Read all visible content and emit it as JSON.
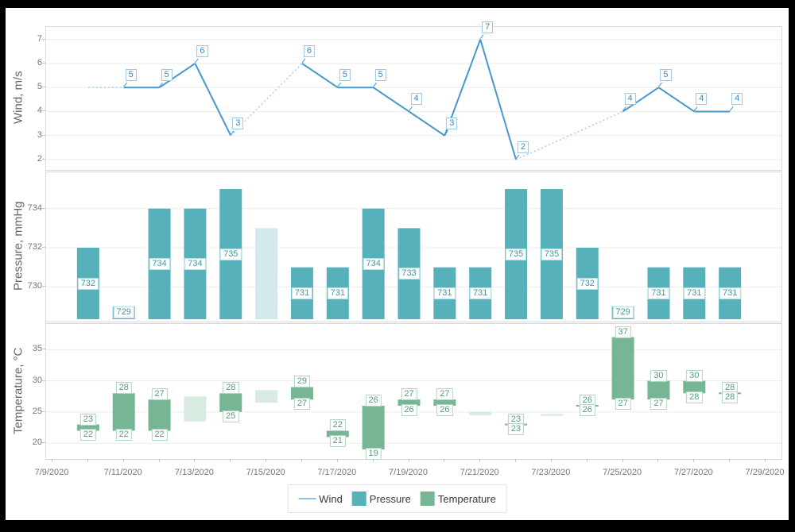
{
  "colors": {
    "wind": "#4698cb",
    "wind_interpolated": "#a8cee6",
    "pressure": "#57b1bb",
    "pressure_interpolated": "#d3e9ec",
    "temperature": "#76b694",
    "temperature_interpolated": "#d7ebe0",
    "grid": "#ececec",
    "pane_border": "#d9d9d9",
    "axis_text": "#767676"
  },
  "x_axis": {
    "labels": [
      "7/9/2020",
      "7/11/2020",
      "7/13/2020",
      "7/15/2020",
      "7/17/2020",
      "7/19/2020",
      "7/21/2020",
      "7/23/2020",
      "7/25/2020",
      "7/27/2020",
      "7/29/2020"
    ]
  },
  "legend": {
    "items": [
      {
        "label": "Wind",
        "marker": "line",
        "color": "#8fc2e0"
      },
      {
        "label": "Pressure",
        "marker": "box",
        "color": "#57b1bb"
      },
      {
        "label": "Temperature",
        "marker": "box",
        "color": "#76b694"
      }
    ]
  },
  "chart_data": [
    {
      "type": "line",
      "name": "Wind",
      "title": "Wind, m/s",
      "y_ticks": [
        7,
        6,
        5,
        4,
        3,
        2
      ],
      "ylim": [
        1.5,
        7.5
      ],
      "points": [
        {
          "date": "7/10/2020",
          "value": 5,
          "interpolated": true
        },
        {
          "date": "7/11/2020",
          "value": 5
        },
        {
          "date": "7/12/2020",
          "value": 5
        },
        {
          "date": "7/13/2020",
          "value": 6
        },
        {
          "date": "7/14/2020",
          "value": 3
        },
        {
          "date": "7/16/2020",
          "value": 6
        },
        {
          "date": "7/17/2020",
          "value": 5
        },
        {
          "date": "7/18/2020",
          "value": 5
        },
        {
          "date": "7/19/2020",
          "value": 4
        },
        {
          "date": "7/20/2020",
          "value": 3
        },
        {
          "date": "7/21/2020",
          "value": 7
        },
        {
          "date": "7/22/2020",
          "value": 2
        },
        {
          "date": "7/25/2020",
          "value": 4
        },
        {
          "date": "7/26/2020",
          "value": 5
        },
        {
          "date": "7/27/2020",
          "value": 4
        },
        {
          "date": "7/28/2020",
          "value": 4
        }
      ]
    },
    {
      "type": "bar",
      "name": "Pressure",
      "title": "Pressure, mmHg",
      "y_ticks": [
        734,
        732,
        730
      ],
      "ylim": [
        728.4,
        735.9
      ],
      "bars": [
        {
          "date": "7/10/2020",
          "value": 732
        },
        {
          "date": "7/11/2020",
          "value": 729
        },
        {
          "date": "7/12/2020",
          "value": 734
        },
        {
          "date": "7/13/2020",
          "value": 734
        },
        {
          "date": "7/14/2020",
          "value": 735
        },
        {
          "date": "7/15/2020",
          "value": 733,
          "interpolated": true
        },
        {
          "date": "7/16/2020",
          "value": 731
        },
        {
          "date": "7/17/2020",
          "value": 731
        },
        {
          "date": "7/18/2020",
          "value": 734
        },
        {
          "date": "7/19/2020",
          "value": 733
        },
        {
          "date": "7/20/2020",
          "value": 731
        },
        {
          "date": "7/21/2020",
          "value": 731
        },
        {
          "date": "7/22/2020",
          "value": 735
        },
        {
          "date": "7/23/2020",
          "value": 735
        },
        {
          "date": "7/24/2020",
          "value": 732
        },
        {
          "date": "7/25/2020",
          "value": 729
        },
        {
          "date": "7/26/2020",
          "value": 731
        },
        {
          "date": "7/27/2020",
          "value": 731
        },
        {
          "date": "7/28/2020",
          "value": 731
        }
      ]
    },
    {
      "type": "rangebar",
      "name": "Temperature",
      "title": "Temperature, °C",
      "y_ticks": [
        35,
        30,
        25,
        20
      ],
      "ylim": [
        17.9,
        39.1
      ],
      "bars": [
        {
          "date": "7/10/2020",
          "low": 22,
          "high": 23
        },
        {
          "date": "7/11/2020",
          "low": 22,
          "high": 28
        },
        {
          "date": "7/12/2020",
          "low": 22,
          "high": 27
        },
        {
          "date": "7/13/2020",
          "low": 23.5,
          "high": 27.5,
          "interpolated": true
        },
        {
          "date": "7/14/2020",
          "low": 25,
          "high": 28
        },
        {
          "date": "7/15/2020",
          "low": 26.5,
          "high": 28.5,
          "interpolated": true
        },
        {
          "date": "7/16/2020",
          "low": 27,
          "high": 29
        },
        {
          "date": "7/17/2020",
          "low": 21,
          "high": 22
        },
        {
          "date": "7/18/2020",
          "low": 19,
          "high": 26
        },
        {
          "date": "7/19/2020",
          "low": 26,
          "high": 27
        },
        {
          "date": "7/20/2020",
          "low": 26,
          "high": 27
        },
        {
          "date": "7/21/2020",
          "low": 24.5,
          "high": 25,
          "interpolated": true
        },
        {
          "date": "7/22/2020",
          "low": 23,
          "high": 23
        },
        {
          "date": "7/23/2020",
          "low": 24.4,
          "high": 24.7,
          "interpolated": true
        },
        {
          "date": "7/24/2020",
          "low": 26,
          "high": 26
        },
        {
          "date": "7/25/2020",
          "low": 27,
          "high": 37
        },
        {
          "date": "7/26/2020",
          "low": 27,
          "high": 30
        },
        {
          "date": "7/27/2020",
          "low": 28,
          "high": 30
        },
        {
          "date": "7/28/2020",
          "low": 28,
          "high": 28
        }
      ]
    }
  ]
}
